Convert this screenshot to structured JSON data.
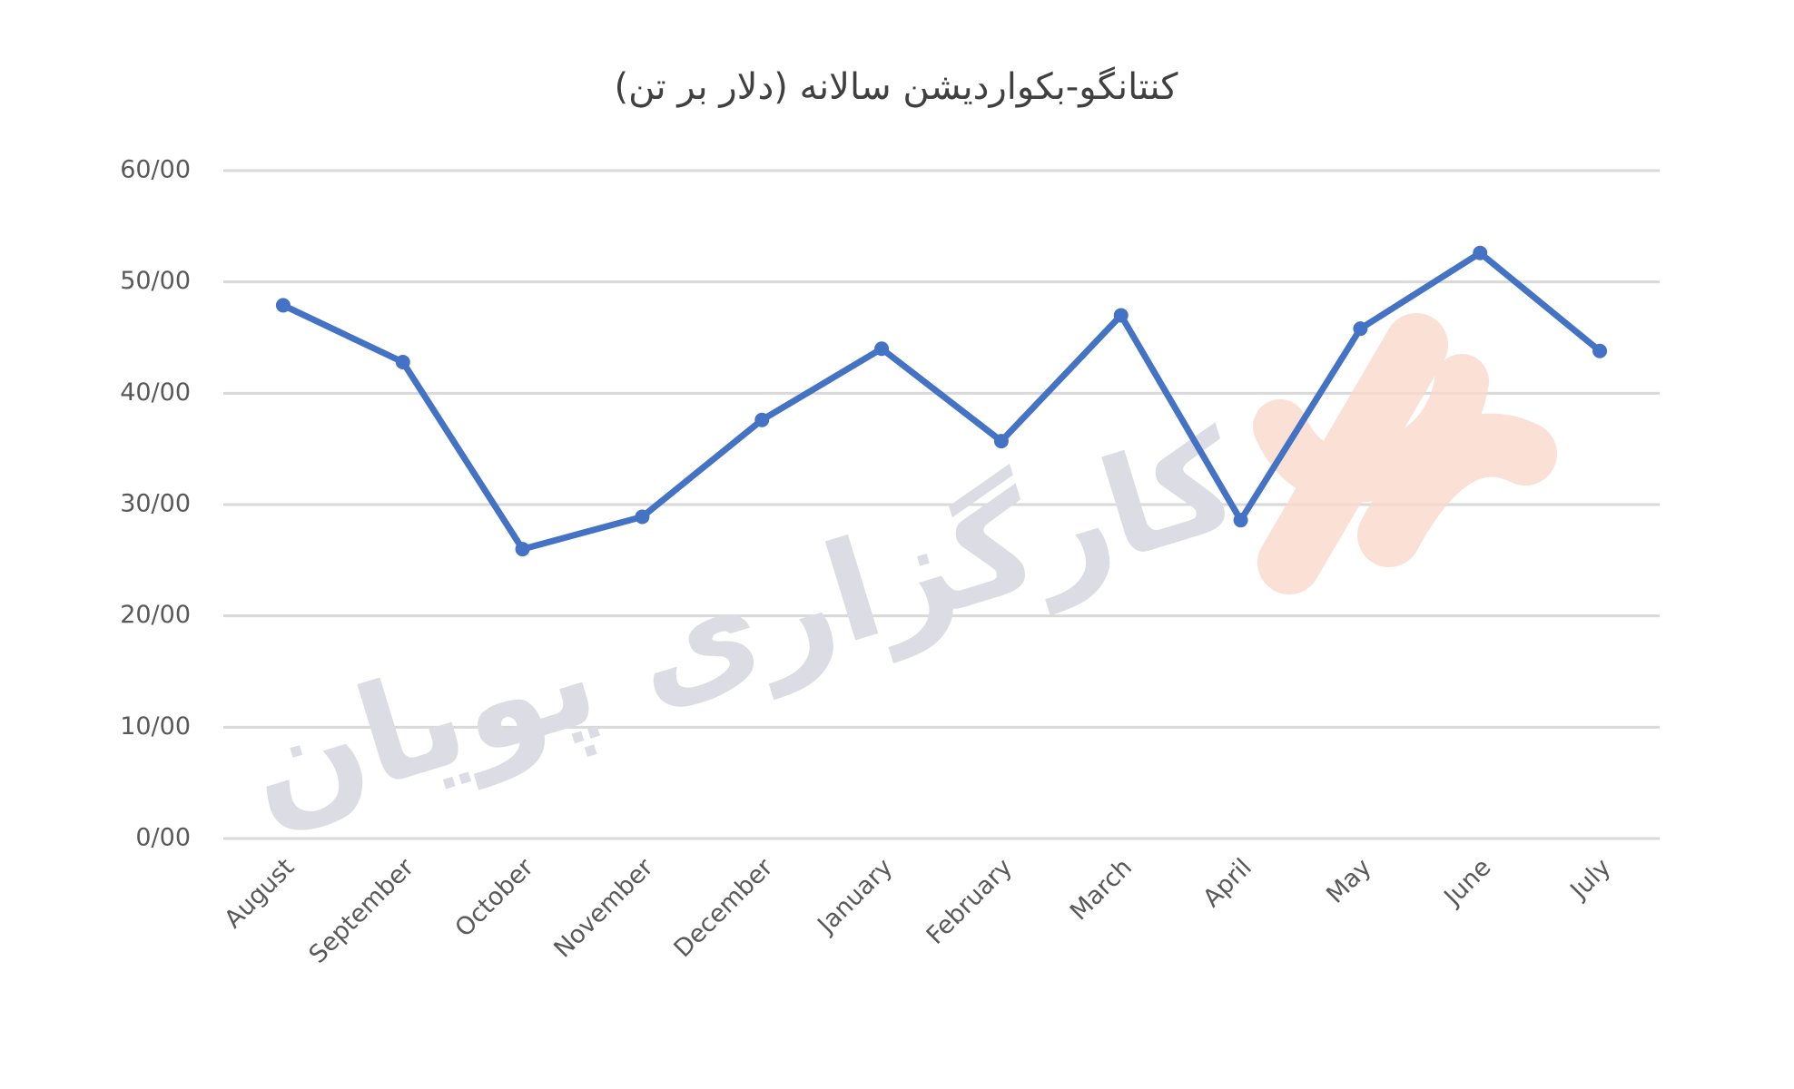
{
  "chart_data": {
    "type": "line",
    "title": "کنتانگو-بکواردیشن سالانه (دلار بر تن)",
    "watermark": "کارگزاری پویان",
    "categories": [
      "August",
      "September",
      "October",
      "November",
      "December",
      "January",
      "February",
      "March",
      "April",
      "May",
      "June",
      "July"
    ],
    "series": [
      {
        "name": "کنتانگو-بکواردیشن",
        "color": "#4472c4",
        "values": [
          47.9,
          42.8,
          26.0,
          28.9,
          37.6,
          44.0,
          35.7,
          47.0,
          28.6,
          45.8,
          52.6,
          43.8
        ]
      }
    ],
    "ylim": [
      0,
      60
    ],
    "yticks": [
      {
        "value": 0,
        "label": "0/00"
      },
      {
        "value": 10,
        "label": "10/00"
      },
      {
        "value": 20,
        "label": "20/00"
      },
      {
        "value": 30,
        "label": "30/00"
      },
      {
        "value": 40,
        "label": "40/00"
      },
      {
        "value": 50,
        "label": "50/00"
      },
      {
        "value": 60,
        "label": "60/00"
      }
    ],
    "grid": true
  }
}
